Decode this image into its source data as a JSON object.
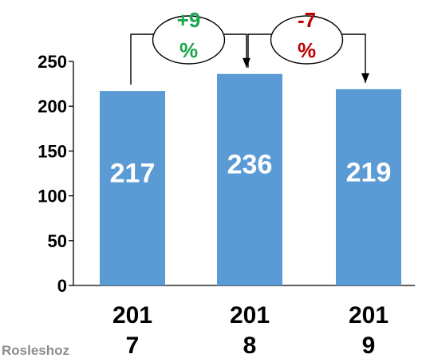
{
  "chart_data": {
    "type": "bar",
    "categories": [
      "201\n7",
      "201\n8",
      "201\n9"
    ],
    "values": [
      217,
      236,
      219
    ],
    "value_labels": [
      "217",
      "236",
      "219"
    ],
    "ylim": [
      0,
      250
    ],
    "yticks": [
      "0",
      "50",
      "100",
      "150",
      "200",
      "250"
    ],
    "bar_color": "#5b9bd5",
    "changes": [
      {
        "from": 0,
        "to": 1,
        "label": "+9\n%",
        "color": "#1aa64a"
      },
      {
        "from": 1,
        "to": 2,
        "label": "-7\n%",
        "color": "#c00000"
      }
    ]
  },
  "source": "Rosleshoz"
}
